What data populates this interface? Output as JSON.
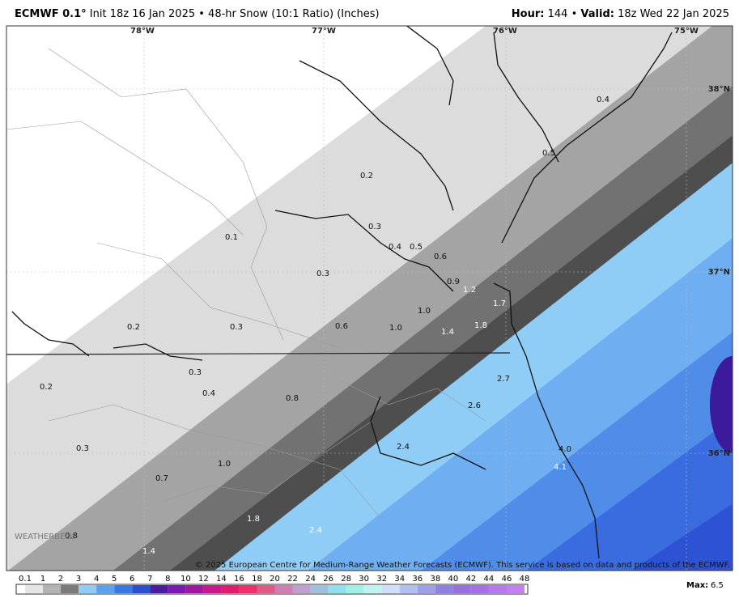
{
  "header": {
    "model": "ECMWF 0.1°",
    "description": "Init 18z 16 Jan 2025 • 48-hr Snow (10:1 Ratio) (Inches)",
    "hour_label": "Hour:",
    "hour": "144",
    "separator": "•",
    "valid_label": "Valid:",
    "valid": "18z Wed 22 Jan 2025"
  },
  "map": {
    "lon_labels": [
      "78°W",
      "77°W",
      "76°W",
      "75°W"
    ],
    "lat_labels": [
      "38°N",
      "37°N",
      "36°N"
    ],
    "band_colors": [
      "#ffffff",
      "#dcdcdc",
      "#a4a4a4",
      "#727272",
      "#4e4e4e",
      "#8fcdf7",
      "#6eaef1",
      "#4f8de9",
      "#3a6ce0",
      "#2d52d3",
      "#3c1a9c"
    ],
    "values": [
      "0.4",
      "0.5",
      "0.2",
      "0.3",
      "0.4",
      "0.5",
      "0.6",
      "0.1",
      "0.3",
      "0.9",
      "1.2",
      "1.7",
      "1.0",
      "1.4",
      "1.8",
      "0.6",
      "1.0",
      "0.2",
      "0.3",
      "0.3",
      "0.4",
      "0.2",
      "0.8",
      "2.7",
      "2.6",
      "2.4",
      "4.0",
      "4.1",
      "0.3",
      "1.0",
      "0.7",
      "1.8",
      "2.4",
      "0.8",
      "1.4"
    ],
    "credit": "© 2025 European Centre for Medium-Range Weather Forecasts (ECMWF). This service is based on data and products of the ECMWF.",
    "logo": "WEATHERBELL"
  },
  "colorbar": {
    "labels": [
      "0.1",
      "1",
      "2",
      "3",
      "4",
      "5",
      "6",
      "7",
      "8",
      "10",
      "12",
      "14",
      "16",
      "18",
      "20",
      "22",
      "24",
      "26",
      "28",
      "30",
      "32",
      "34",
      "36",
      "38",
      "40",
      "42",
      "44",
      "46",
      "48"
    ],
    "colors": [
      "#e6e6e6",
      "#b4b4b4",
      "#7a7a7a",
      "#8fcdf7",
      "#5aa2ee",
      "#3c78e3",
      "#2a4fd0",
      "#4a1ca0",
      "#7a1ab0",
      "#a0189f",
      "#c8188c",
      "#e01c6c",
      "#f0306a",
      "#e05a8a",
      "#d080b0",
      "#c0a0d0",
      "#a0c0e0",
      "#90e0f0",
      "#a0f0e8",
      "#c0f4f0",
      "#d0e0f8",
      "#b0c0f0",
      "#a0a0e8",
      "#9080e0",
      "#9870e0",
      "#a870e8",
      "#b878ee",
      "#c480f2"
    ]
  },
  "footer": {
    "max_label": "Max:",
    "max_value": "6.5"
  }
}
